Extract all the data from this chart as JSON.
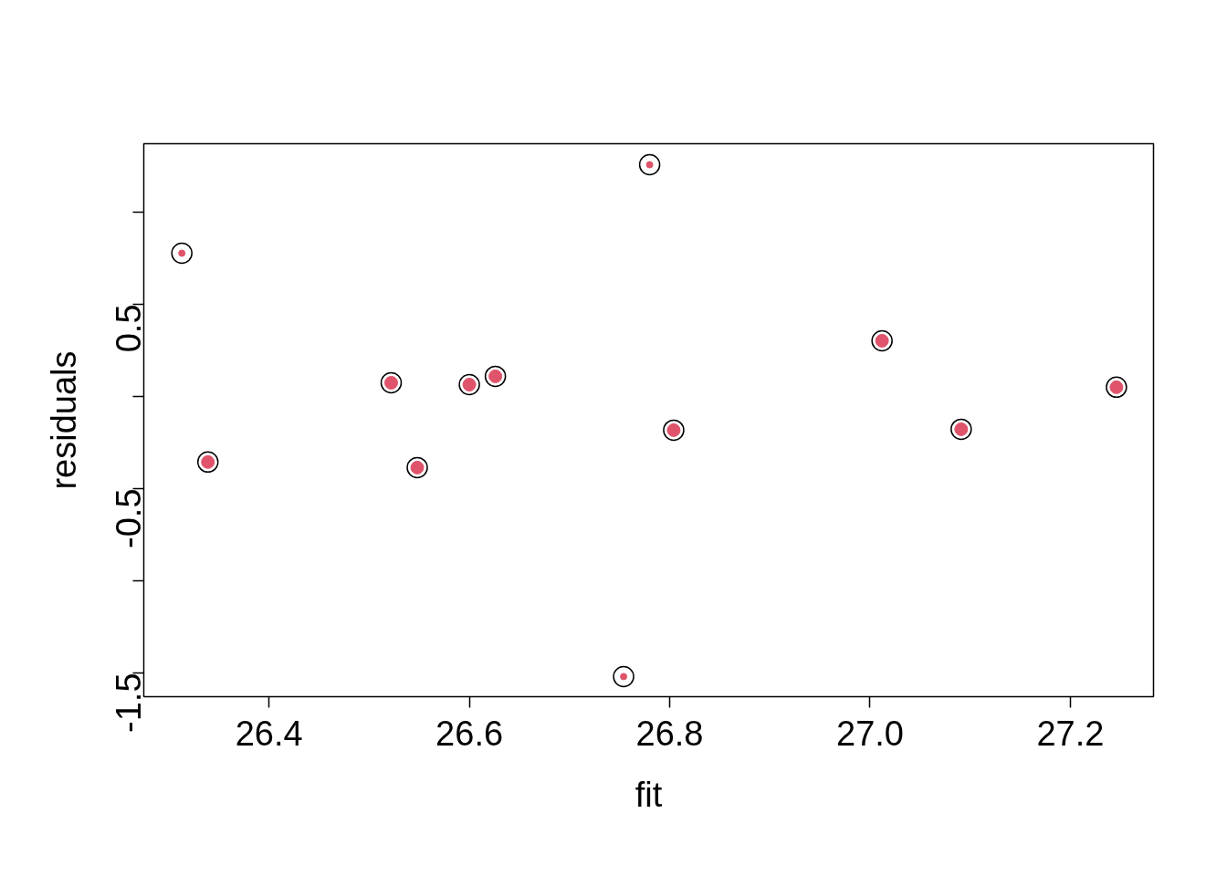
{
  "chart_data": {
    "type": "scatter",
    "xlabel": "fit",
    "ylabel": "residuals",
    "series": [
      {
        "color": "#df536b",
        "x": [
          26.339,
          26.522,
          26.548,
          26.6,
          26.626,
          26.804,
          27.012,
          27.091,
          27.246
        ],
        "values": [
          -0.356,
          0.074,
          -0.386,
          0.064,
          0.109,
          -0.183,
          0.302,
          -0.178,
          0.05
        ]
      },
      {
        "color": "#df536b",
        "x": [
          26.313,
          26.78,
          26.754
        ],
        "values": [
          0.777,
          1.257,
          -1.52
        ]
      }
    ],
    "xlim": [
      26.275,
      27.283
    ],
    "ylim": [
      -1.629,
      1.371
    ],
    "xticks": [
      26.4,
      26.6,
      26.8,
      {
        "value": 27.0,
        "label": "27.0"
      },
      27.2
    ],
    "yticks": [
      {
        "value": -1.5,
        "label": "-1.5"
      },
      {
        "value": -1.0,
        "label": null
      },
      {
        "value": -0.5,
        "label": "-0.5"
      },
      {
        "value": 0.0,
        "label": null
      },
      {
        "value": 0.5,
        "label": "0.5"
      },
      {
        "value": 1.0,
        "label": null
      }
    ],
    "grid": false,
    "marker": "circle"
  }
}
